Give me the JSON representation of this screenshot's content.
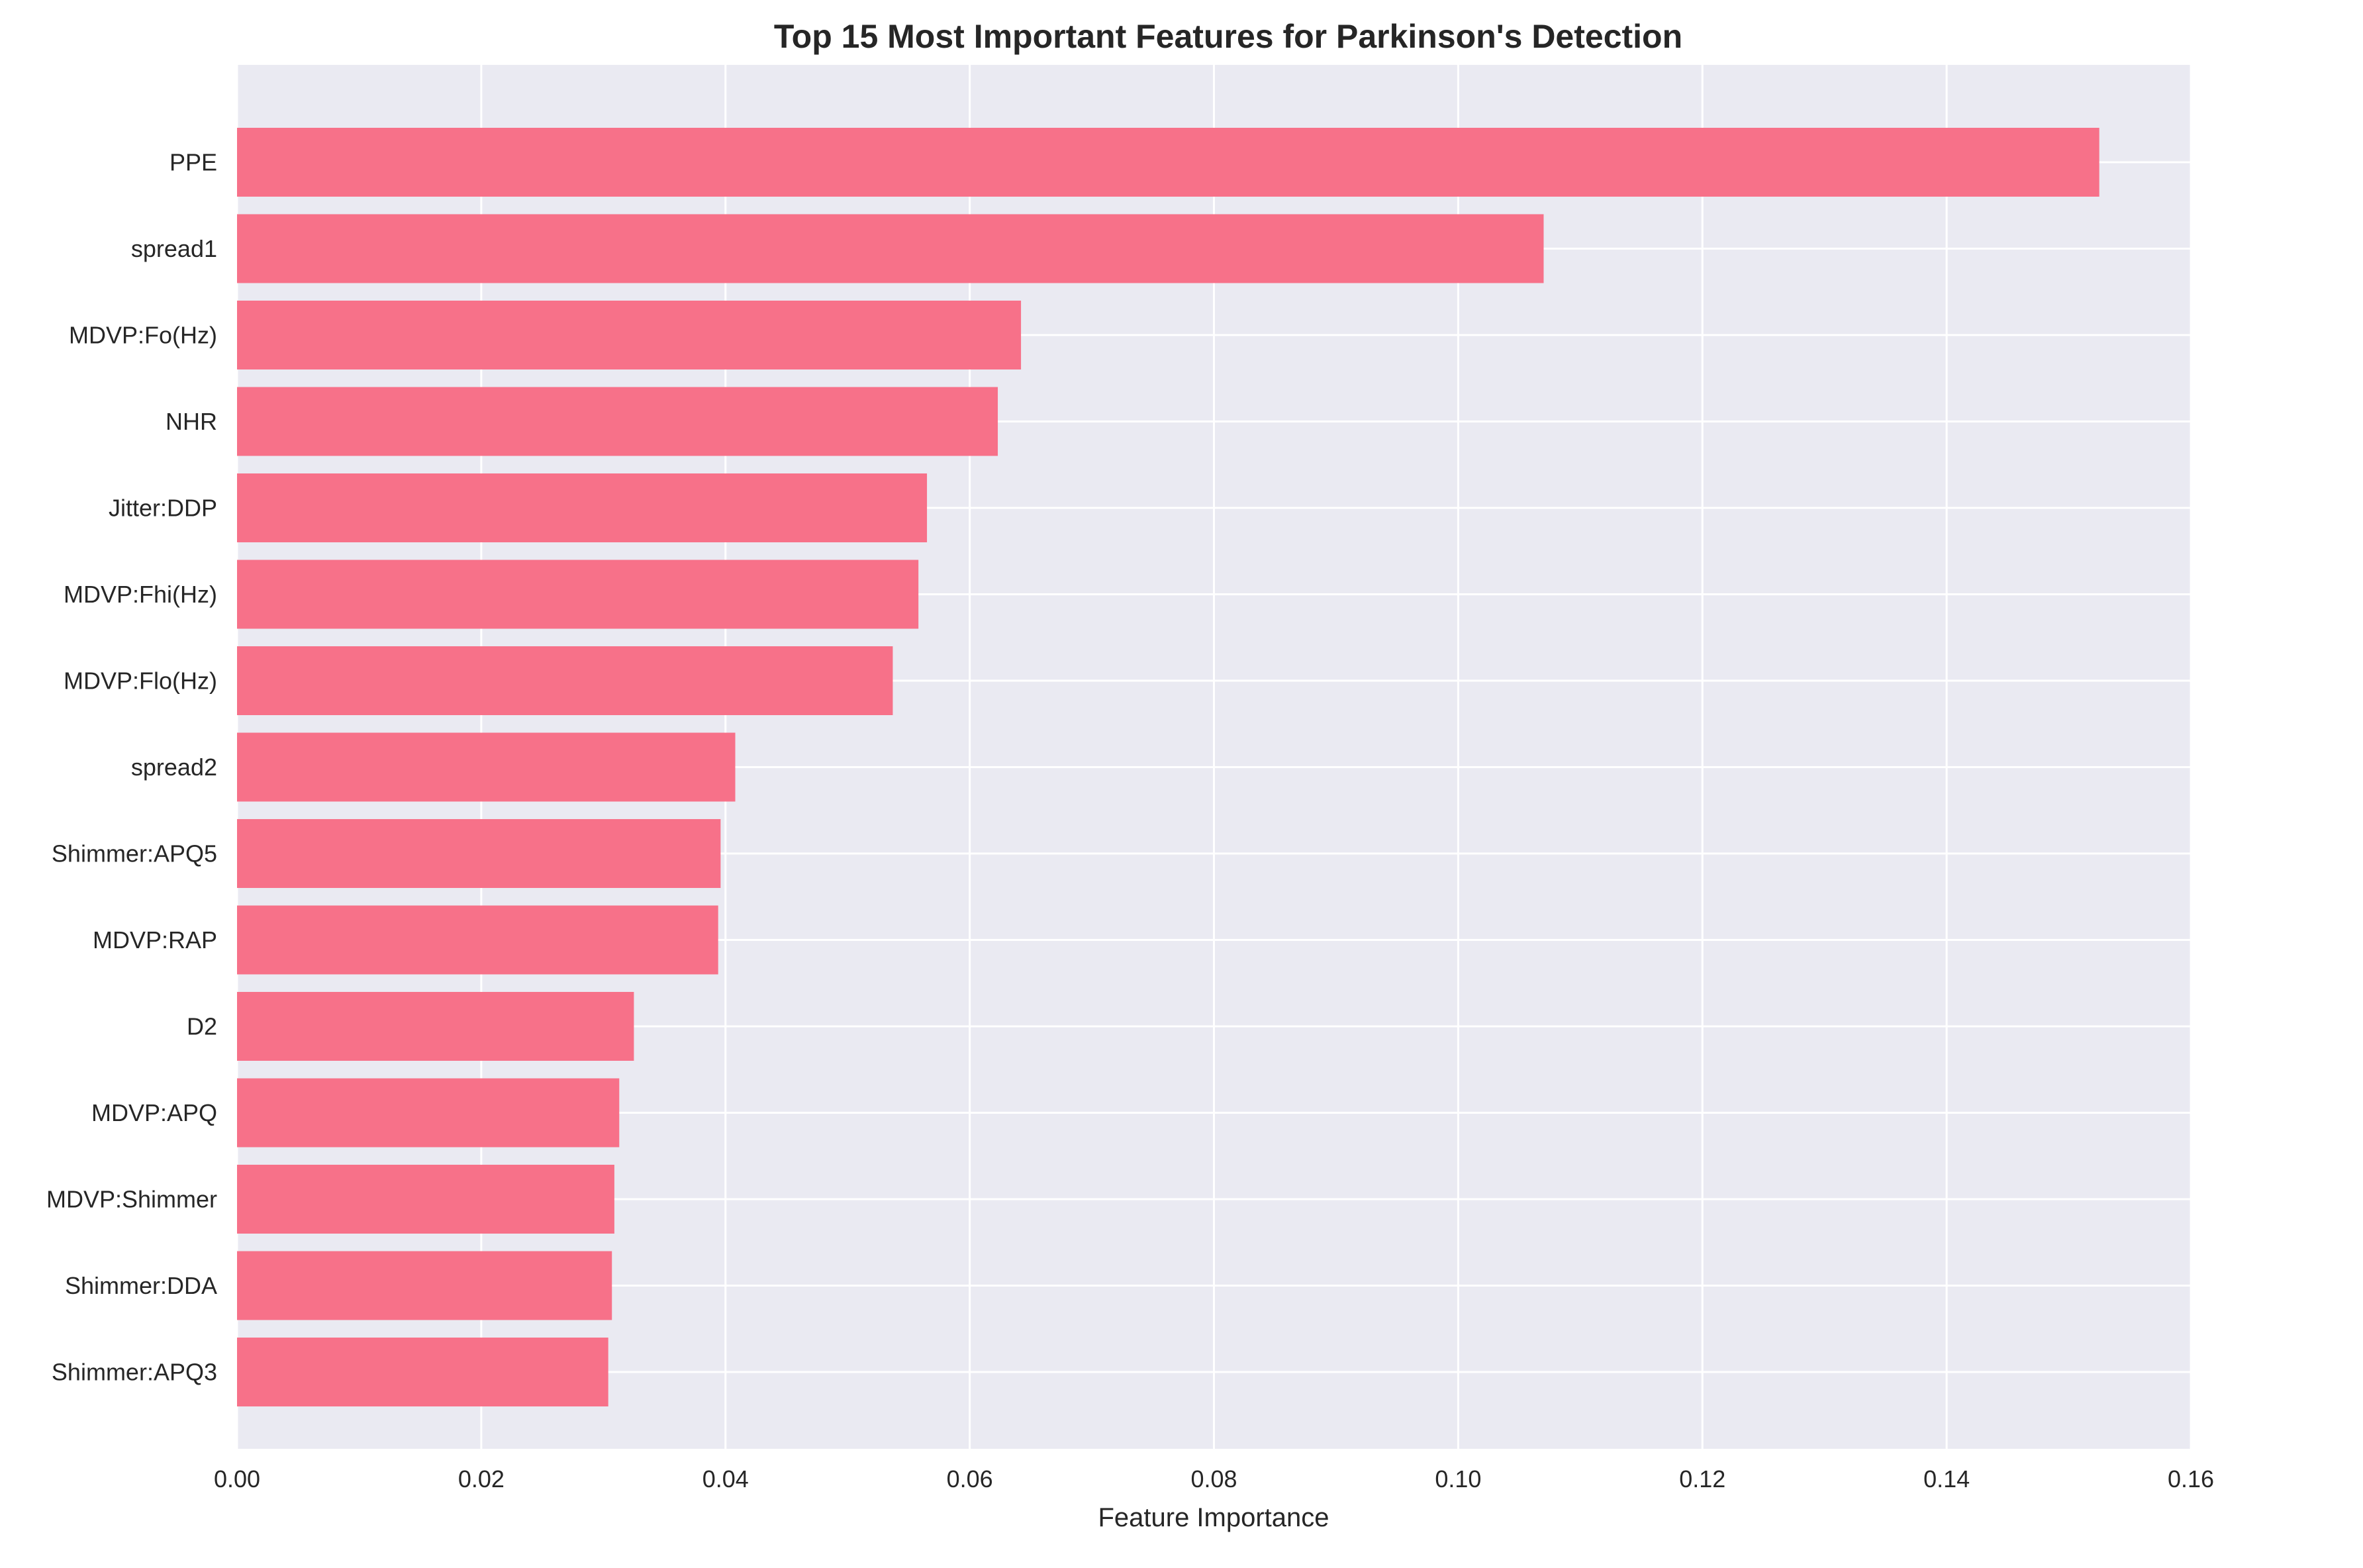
{
  "chart_data": {
    "type": "bar",
    "orientation": "horizontal",
    "title": "Top 15 Most Important Features for Parkinson's Detection",
    "xlabel": "Feature Importance",
    "ylabel": "",
    "xlim": [
      0,
      0.16
    ],
    "xticks": [
      0.0,
      0.02,
      0.04,
      0.06,
      0.08,
      0.1,
      0.12,
      0.14,
      0.16
    ],
    "xtick_labels": [
      "0.00",
      "0.02",
      "0.04",
      "0.06",
      "0.08",
      "0.10",
      "0.12",
      "0.14",
      "0.16"
    ],
    "grid": true,
    "colors": {
      "bar": "#f77189",
      "plot_background": "#eaeaf2",
      "grid": "#ffffff"
    },
    "categories": [
      "PPE",
      "spread1",
      "MDVP:Fo(Hz)",
      "NHR",
      "Jitter:DDP",
      "MDVP:Fhi(Hz)",
      "MDVP:Flo(Hz)",
      "spread2",
      "Shimmer:APQ5",
      "MDVP:RAP",
      "D2",
      "MDVP:APQ",
      "MDVP:Shimmer",
      "Shimmer:DDA",
      "Shimmer:APQ3"
    ],
    "values": [
      0.1525,
      0.107,
      0.0642,
      0.0623,
      0.0565,
      0.0558,
      0.0537,
      0.0408,
      0.0396,
      0.0394,
      0.0325,
      0.0313,
      0.0309,
      0.0307,
      0.0304
    ]
  }
}
